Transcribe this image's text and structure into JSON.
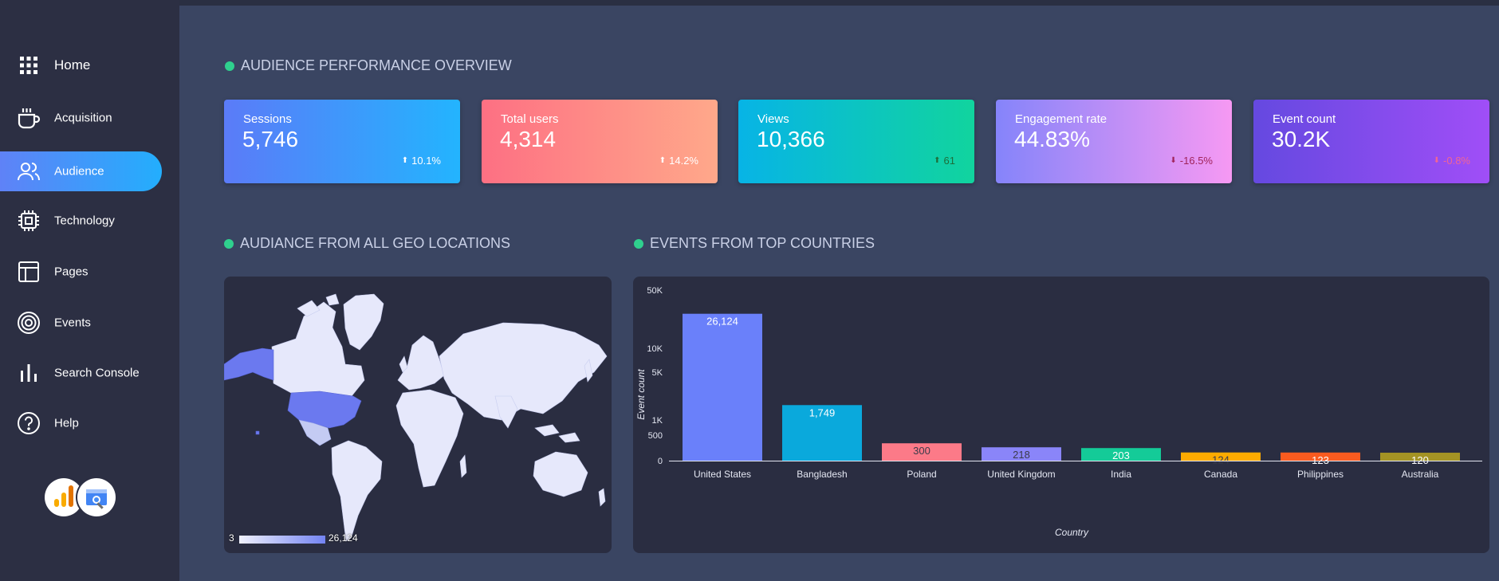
{
  "sidebar": {
    "items": [
      {
        "label": "Home",
        "icon": "grid-icon",
        "active": false
      },
      {
        "label": "Acquisition",
        "icon": "cup-icon",
        "active": false
      },
      {
        "label": "Audience",
        "icon": "users-icon",
        "active": true
      },
      {
        "label": "Technology",
        "icon": "chip-icon",
        "active": false
      },
      {
        "label": "Pages",
        "icon": "layout-icon",
        "active": false
      },
      {
        "label": "Events",
        "icon": "target-icon",
        "active": false
      },
      {
        "label": "Search Console",
        "icon": "bar-chart-icon",
        "active": false
      },
      {
        "label": "Help",
        "icon": "help-icon",
        "active": false
      }
    ],
    "logos": [
      "google-analytics-logo",
      "search-console-logo"
    ]
  },
  "overview": {
    "title": "AUDIENCE PERFORMANCE OVERVIEW",
    "kpis": [
      {
        "label": "Sessions",
        "value": "5,746",
        "delta": "10.1%",
        "direction": "up",
        "delta_color": "#ffffff",
        "gradient": [
          "#5b7bf8",
          "#23b4fe"
        ]
      },
      {
        "label": "Total users",
        "value": "4,314",
        "delta": "14.2%",
        "direction": "up",
        "delta_color": "#ffffff",
        "gradient": [
          "#fd7083",
          "#ffa88a"
        ]
      },
      {
        "label": "Views",
        "value": "10,366",
        "delta": "61",
        "direction": "up",
        "delta_color": "#1e6e3a",
        "gradient": [
          "#07b4e6",
          "#11d49e"
        ]
      },
      {
        "label": "Engagement rate",
        "value": "44.83%",
        "delta": "-16.5%",
        "direction": "down",
        "delta_color": "#a0235a",
        "gradient": [
          "#8584fa",
          "#f699f3"
        ]
      },
      {
        "label": "Event count",
        "value": "30.2K",
        "delta": "-0.8%",
        "direction": "down",
        "delta_color": "#f06595",
        "gradient": [
          "#6549e0",
          "#a04ef7"
        ]
      }
    ]
  },
  "geo": {
    "title": "AUDIANCE FROM ALL GEO LOCATIONS",
    "legend_min": "3",
    "legend_max": "26,124"
  },
  "events": {
    "title": "EVENTS FROM TOP COUNTRIES"
  },
  "chart_data": {
    "type": "bar",
    "title": "",
    "xlabel": "Country",
    "ylabel": "Event count",
    "scale": "symlog",
    "yticks": [
      0,
      500,
      1000,
      5000,
      10000,
      50000
    ],
    "ytick_labels": [
      "0",
      "500",
      "1K",
      "5K",
      "10K",
      "50K"
    ],
    "categories": [
      "United States",
      "Bangladesh",
      "Poland",
      "United Kingdom",
      "India",
      "Canada",
      "Philippines",
      "Australia"
    ],
    "values": [
      26124,
      1749,
      300,
      218,
      203,
      124,
      123,
      120
    ],
    "value_labels": [
      "26,124",
      "1,749",
      "300",
      "218",
      "203",
      "124",
      "123",
      "120"
    ],
    "colors": [
      "#6a80fa",
      "#0aa9dc",
      "#fc7a88",
      "#8a85f9",
      "#14cb98",
      "#fdab00",
      "#fa5b1f",
      "#a49324"
    ],
    "label_colors": [
      "#ffffff",
      "#ffffff",
      "#3b3b4a",
      "#3b3b4a",
      "#ffffff",
      "#3b3b4a",
      "#ffffff",
      "#ffffff"
    ],
    "grid": false,
    "legend": "none"
  }
}
